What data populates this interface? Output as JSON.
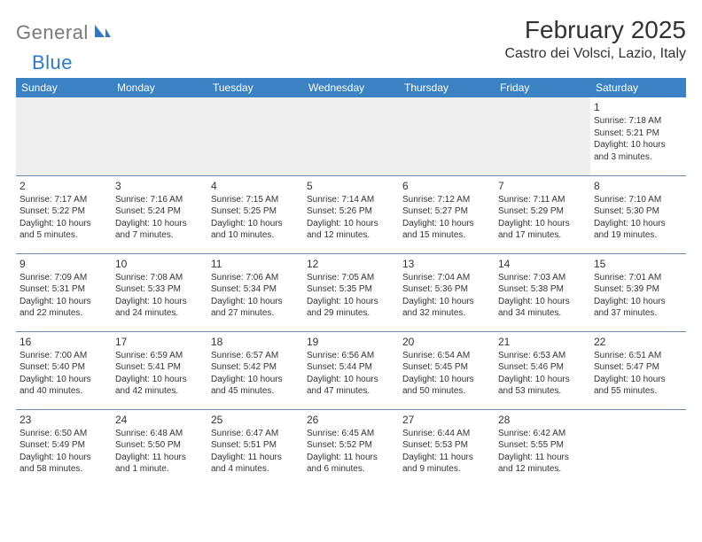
{
  "logo": {
    "word1": "General",
    "word2": "Blue"
  },
  "title": "February 2025",
  "location": "Castro dei Volsci, Lazio, Italy",
  "colors": {
    "header_bg": "#3b82c4",
    "header_fg": "#ffffff",
    "row_divider": "#6a8aa8",
    "empty_row_bg": "#efefef",
    "body_text": "#333333",
    "logo_gray": "#7a7a7a",
    "logo_blue": "#2f78c3"
  },
  "typography": {
    "title_fontsize": 28,
    "location_fontsize": 16,
    "header_fontsize": 12,
    "daynum_fontsize": 12,
    "cell_fontsize": 10
  },
  "weekdays": [
    "Sunday",
    "Monday",
    "Tuesday",
    "Wednesday",
    "Thursday",
    "Friday",
    "Saturday"
  ],
  "weeks": [
    [
      null,
      null,
      null,
      null,
      null,
      null,
      {
        "d": "1",
        "sr": "Sunrise: 7:18 AM",
        "ss": "Sunset: 5:21 PM",
        "dl1": "Daylight: 10 hours",
        "dl2": "and 3 minutes."
      }
    ],
    [
      {
        "d": "2",
        "sr": "Sunrise: 7:17 AM",
        "ss": "Sunset: 5:22 PM",
        "dl1": "Daylight: 10 hours",
        "dl2": "and 5 minutes."
      },
      {
        "d": "3",
        "sr": "Sunrise: 7:16 AM",
        "ss": "Sunset: 5:24 PM",
        "dl1": "Daylight: 10 hours",
        "dl2": "and 7 minutes."
      },
      {
        "d": "4",
        "sr": "Sunrise: 7:15 AM",
        "ss": "Sunset: 5:25 PM",
        "dl1": "Daylight: 10 hours",
        "dl2": "and 10 minutes."
      },
      {
        "d": "5",
        "sr": "Sunrise: 7:14 AM",
        "ss": "Sunset: 5:26 PM",
        "dl1": "Daylight: 10 hours",
        "dl2": "and 12 minutes."
      },
      {
        "d": "6",
        "sr": "Sunrise: 7:12 AM",
        "ss": "Sunset: 5:27 PM",
        "dl1": "Daylight: 10 hours",
        "dl2": "and 15 minutes."
      },
      {
        "d": "7",
        "sr": "Sunrise: 7:11 AM",
        "ss": "Sunset: 5:29 PM",
        "dl1": "Daylight: 10 hours",
        "dl2": "and 17 minutes."
      },
      {
        "d": "8",
        "sr": "Sunrise: 7:10 AM",
        "ss": "Sunset: 5:30 PM",
        "dl1": "Daylight: 10 hours",
        "dl2": "and 19 minutes."
      }
    ],
    [
      {
        "d": "9",
        "sr": "Sunrise: 7:09 AM",
        "ss": "Sunset: 5:31 PM",
        "dl1": "Daylight: 10 hours",
        "dl2": "and 22 minutes."
      },
      {
        "d": "10",
        "sr": "Sunrise: 7:08 AM",
        "ss": "Sunset: 5:33 PM",
        "dl1": "Daylight: 10 hours",
        "dl2": "and 24 minutes."
      },
      {
        "d": "11",
        "sr": "Sunrise: 7:06 AM",
        "ss": "Sunset: 5:34 PM",
        "dl1": "Daylight: 10 hours",
        "dl2": "and 27 minutes."
      },
      {
        "d": "12",
        "sr": "Sunrise: 7:05 AM",
        "ss": "Sunset: 5:35 PM",
        "dl1": "Daylight: 10 hours",
        "dl2": "and 29 minutes."
      },
      {
        "d": "13",
        "sr": "Sunrise: 7:04 AM",
        "ss": "Sunset: 5:36 PM",
        "dl1": "Daylight: 10 hours",
        "dl2": "and 32 minutes."
      },
      {
        "d": "14",
        "sr": "Sunrise: 7:03 AM",
        "ss": "Sunset: 5:38 PM",
        "dl1": "Daylight: 10 hours",
        "dl2": "and 34 minutes."
      },
      {
        "d": "15",
        "sr": "Sunrise: 7:01 AM",
        "ss": "Sunset: 5:39 PM",
        "dl1": "Daylight: 10 hours",
        "dl2": "and 37 minutes."
      }
    ],
    [
      {
        "d": "16",
        "sr": "Sunrise: 7:00 AM",
        "ss": "Sunset: 5:40 PM",
        "dl1": "Daylight: 10 hours",
        "dl2": "and 40 minutes."
      },
      {
        "d": "17",
        "sr": "Sunrise: 6:59 AM",
        "ss": "Sunset: 5:41 PM",
        "dl1": "Daylight: 10 hours",
        "dl2": "and 42 minutes."
      },
      {
        "d": "18",
        "sr": "Sunrise: 6:57 AM",
        "ss": "Sunset: 5:42 PM",
        "dl1": "Daylight: 10 hours",
        "dl2": "and 45 minutes."
      },
      {
        "d": "19",
        "sr": "Sunrise: 6:56 AM",
        "ss": "Sunset: 5:44 PM",
        "dl1": "Daylight: 10 hours",
        "dl2": "and 47 minutes."
      },
      {
        "d": "20",
        "sr": "Sunrise: 6:54 AM",
        "ss": "Sunset: 5:45 PM",
        "dl1": "Daylight: 10 hours",
        "dl2": "and 50 minutes."
      },
      {
        "d": "21",
        "sr": "Sunrise: 6:53 AM",
        "ss": "Sunset: 5:46 PM",
        "dl1": "Daylight: 10 hours",
        "dl2": "and 53 minutes."
      },
      {
        "d": "22",
        "sr": "Sunrise: 6:51 AM",
        "ss": "Sunset: 5:47 PM",
        "dl1": "Daylight: 10 hours",
        "dl2": "and 55 minutes."
      }
    ],
    [
      {
        "d": "23",
        "sr": "Sunrise: 6:50 AM",
        "ss": "Sunset: 5:49 PM",
        "dl1": "Daylight: 10 hours",
        "dl2": "and 58 minutes."
      },
      {
        "d": "24",
        "sr": "Sunrise: 6:48 AM",
        "ss": "Sunset: 5:50 PM",
        "dl1": "Daylight: 11 hours",
        "dl2": "and 1 minute."
      },
      {
        "d": "25",
        "sr": "Sunrise: 6:47 AM",
        "ss": "Sunset: 5:51 PM",
        "dl1": "Daylight: 11 hours",
        "dl2": "and 4 minutes."
      },
      {
        "d": "26",
        "sr": "Sunrise: 6:45 AM",
        "ss": "Sunset: 5:52 PM",
        "dl1": "Daylight: 11 hours",
        "dl2": "and 6 minutes."
      },
      {
        "d": "27",
        "sr": "Sunrise: 6:44 AM",
        "ss": "Sunset: 5:53 PM",
        "dl1": "Daylight: 11 hours",
        "dl2": "and 9 minutes."
      },
      {
        "d": "28",
        "sr": "Sunrise: 6:42 AM",
        "ss": "Sunset: 5:55 PM",
        "dl1": "Daylight: 11 hours",
        "dl2": "and 12 minutes."
      },
      null
    ]
  ]
}
